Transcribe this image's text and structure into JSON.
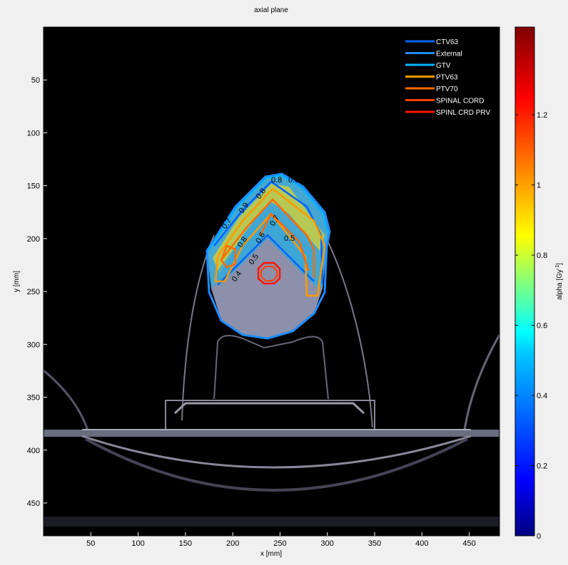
{
  "chart_data": {
    "type": "heatmap",
    "title": "axial plane",
    "xlabel": "x [mm]",
    "ylabel": "y [mm]",
    "xlim": [
      0,
      482
    ],
    "ylim": [
      0,
      481
    ],
    "y_reversed": true,
    "xticks": [
      50,
      100,
      150,
      200,
      250,
      300,
      350,
      400,
      450
    ],
    "yticks": [
      50,
      100,
      150,
      200,
      250,
      300,
      350,
      400,
      450
    ],
    "background": "axial CT image (grayscale)",
    "overlay": "alpha map with contour lines",
    "colormap": "jet",
    "colorbar": {
      "label": "alpha [Gy",
      "label_sup": "-1",
      "label_end": "]",
      "clim": [
        0,
        1.45
      ],
      "ticks": [
        0,
        0.2,
        0.4,
        0.6,
        0.8,
        1,
        1.2
      ],
      "tick_labels": [
        "0",
        "0.2",
        "0.4",
        "0.6",
        "0.8",
        "1",
        "1.2"
      ]
    },
    "contour_labels": [
      "0.5",
      "0.7",
      "0.9",
      "0.8",
      "0.8",
      "0.8",
      "0.6",
      "0.7",
      "0.5",
      "0.5",
      "0.4",
      "0.6"
    ],
    "legend": {
      "placement": "top-right",
      "entries": [
        {
          "name": "CTV63",
          "color": "#0064ff"
        },
        {
          "name": "External",
          "color": "#1e8cff"
        },
        {
          "name": "GTV",
          "color": "#00b4ff"
        },
        {
          "name": "PTV63",
          "color": "#ff9a00"
        },
        {
          "name": "PTV70",
          "color": "#ff6a00"
        },
        {
          "name": "SPINAL CORD",
          "color": "#ff4000"
        },
        {
          "name": "SPINL CRD PRV",
          "color": "#ff1400"
        }
      ]
    }
  }
}
